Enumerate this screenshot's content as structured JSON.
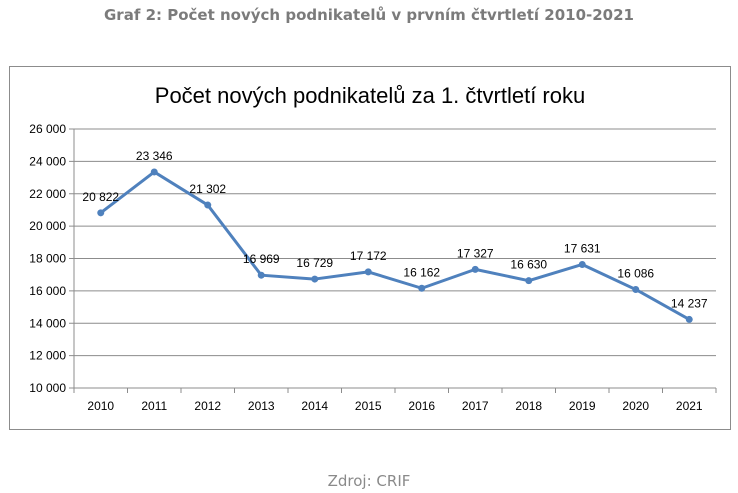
{
  "page": {
    "heading": "Graf 2: Počet nových podnikatelů v prvním čtvrtletí 2010-2021",
    "source": "Zdroj: CRIF"
  },
  "chart_data": {
    "type": "line",
    "title": "Počet nových podnikatelů za 1. čtvrtletí roku",
    "xlabel": "",
    "ylabel": "",
    "categories": [
      "2010",
      "2011",
      "2012",
      "2013",
      "2014",
      "2015",
      "2016",
      "2017",
      "2018",
      "2019",
      "2020",
      "2021"
    ],
    "series": [
      {
        "values": [
          20822,
          23346,
          21302,
          16969,
          16729,
          17172,
          16162,
          17327,
          16630,
          17631,
          16086,
          14237
        ],
        "data_labels": [
          "20 822",
          "23 346",
          "21 302",
          "16 969",
          "16 729",
          "17 172",
          "16 162",
          "17 327",
          "16 630",
          "17 631",
          "16 086",
          "14 237"
        ],
        "color": "#4f81bd"
      }
    ],
    "ylim": [
      10000,
      26000
    ],
    "y_ticks": [
      10000,
      12000,
      14000,
      16000,
      18000,
      20000,
      22000,
      24000,
      26000
    ],
    "y_tick_labels": [
      "10 000",
      "12 000",
      "14 000",
      "16 000",
      "18 000",
      "20 000",
      "22 000",
      "24 000",
      "26 000"
    ],
    "grid": true,
    "legend": "none",
    "gridline_color": "#8c8c8c"
  }
}
